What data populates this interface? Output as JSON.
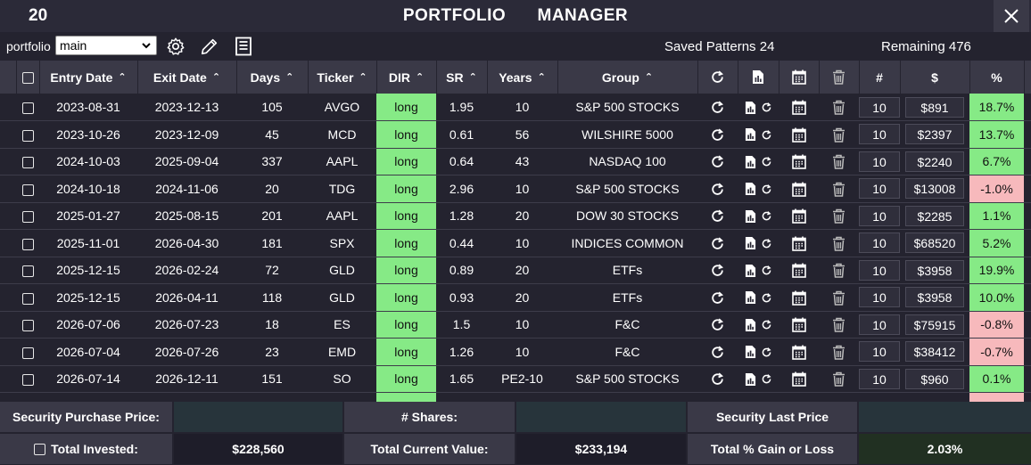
{
  "title": {
    "count": "20",
    "text": "PORTFOLIO   MANAGER"
  },
  "toolbar": {
    "portfolio_label": "portfolio",
    "portfolio_value": "main",
    "saved_patterns": "Saved Patterns 24",
    "remaining": "Remaining 476"
  },
  "table": {
    "headers": {
      "entry_date": "Entry Date",
      "exit_date": "Exit Date",
      "days": "Days",
      "ticker": "Ticker",
      "dir": "DIR",
      "sr": "SR",
      "years": "Years",
      "group": "Group",
      "num": "#",
      "amount": "$",
      "pct": "%"
    },
    "rows": [
      {
        "entry": "2023-08-31",
        "exit": "2023-12-13",
        "days": "105",
        "ticker": "AVGO",
        "dir": "long",
        "sr": "1.95",
        "years": "10",
        "group": "S&P 500 STOCKS",
        "shares": "10",
        "amount": "$891",
        "pct": "18.7%",
        "sign": "pos"
      },
      {
        "entry": "2023-10-26",
        "exit": "2023-12-09",
        "days": "45",
        "ticker": "MCD",
        "dir": "long",
        "sr": "0.61",
        "years": "56",
        "group": "WILSHIRE 5000",
        "shares": "10",
        "amount": "$2397",
        "pct": "13.7%",
        "sign": "pos"
      },
      {
        "entry": "2024-10-03",
        "exit": "2025-09-04",
        "days": "337",
        "ticker": "AAPL",
        "dir": "long",
        "sr": "0.64",
        "years": "43",
        "group": "NASDAQ 100",
        "shares": "10",
        "amount": "$2240",
        "pct": "6.7%",
        "sign": "pos"
      },
      {
        "entry": "2024-10-18",
        "exit": "2024-11-06",
        "days": "20",
        "ticker": "TDG",
        "dir": "long",
        "sr": "2.96",
        "years": "10",
        "group": "S&P 500 STOCKS",
        "shares": "10",
        "amount": "$13008",
        "pct": "-1.0%",
        "sign": "neg"
      },
      {
        "entry": "2025-01-27",
        "exit": "2025-08-15",
        "days": "201",
        "ticker": "AAPL",
        "dir": "long",
        "sr": "1.28",
        "years": "20",
        "group": "DOW 30 STOCKS",
        "shares": "10",
        "amount": "$2285",
        "pct": "1.1%",
        "sign": "pos"
      },
      {
        "entry": "2025-11-01",
        "exit": "2026-04-30",
        "days": "181",
        "ticker": "SPX",
        "dir": "long",
        "sr": "0.44",
        "years": "10",
        "group": "INDICES COMMON",
        "shares": "10",
        "amount": "$68520",
        "pct": "5.2%",
        "sign": "pos"
      },
      {
        "entry": "2025-12-15",
        "exit": "2026-02-24",
        "days": "72",
        "ticker": "GLD",
        "dir": "long",
        "sr": "0.89",
        "years": "20",
        "group": "ETFs",
        "shares": "10",
        "amount": "$3958",
        "pct": "19.9%",
        "sign": "pos"
      },
      {
        "entry": "2025-12-15",
        "exit": "2026-04-11",
        "days": "118",
        "ticker": "GLD",
        "dir": "long",
        "sr": "0.93",
        "years": "20",
        "group": "ETFs",
        "shares": "10",
        "amount": "$3958",
        "pct": "10.0%",
        "sign": "pos"
      },
      {
        "entry": "2026-07-06",
        "exit": "2026-07-23",
        "days": "18",
        "ticker": "ES",
        "dir": "long",
        "sr": "1.5",
        "years": "10",
        "group": "F&C",
        "shares": "10",
        "amount": "$75915",
        "pct": "-0.8%",
        "sign": "neg"
      },
      {
        "entry": "2026-07-04",
        "exit": "2026-07-26",
        "days": "23",
        "ticker": "EMD",
        "dir": "long",
        "sr": "1.26",
        "years": "10",
        "group": "F&C",
        "shares": "10",
        "amount": "$38412",
        "pct": "-0.7%",
        "sign": "neg"
      },
      {
        "entry": "2026-07-14",
        "exit": "2026-12-11",
        "days": "151",
        "ticker": "SO",
        "dir": "long",
        "sr": "1.65",
        "years": "PE2-10",
        "group": "S&P 500 STOCKS",
        "shares": "10",
        "amount": "$960",
        "pct": "0.1%",
        "sign": "pos"
      }
    ]
  },
  "footer": {
    "purchase_price_label": "Security Purchase Price:",
    "shares_label": "# Shares:",
    "last_price_label": "Security Last Price",
    "total_invested_label": "Total Invested:",
    "total_invested": "$228,560",
    "current_value_label": "Total Current Value:",
    "current_value": "$233,194",
    "gain_label": "Total % Gain or Loss",
    "gain": "2.03%"
  },
  "colors": {
    "background": "#24232f",
    "header": "#3a3947",
    "positive": "#86ea86",
    "negative": "#f7b9bc"
  },
  "icons": [
    "close-icon",
    "gear-icon",
    "pencil-icon",
    "document-icon",
    "refresh-icon",
    "chart-file-icon",
    "calendar-icon",
    "trash-icon",
    "sort-icon",
    "chevron-down-icon"
  ]
}
